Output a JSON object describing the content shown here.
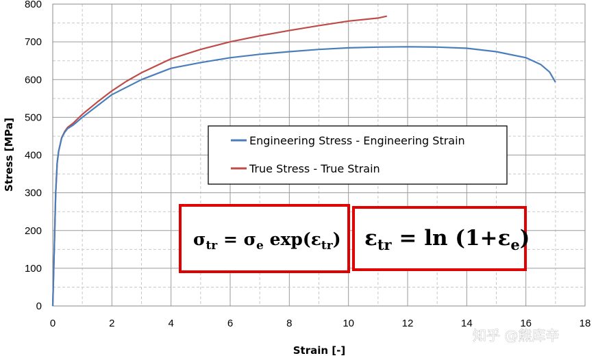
{
  "chart_data": {
    "type": "line",
    "xlabel": "Strain [-]",
    "ylabel": "Stress [MPa]",
    "xlim": [
      0,
      18
    ],
    "ylim": [
      0,
      800
    ],
    "xticks": [
      0,
      2,
      4,
      6,
      8,
      10,
      12,
      14,
      16,
      18
    ],
    "yticks": [
      0,
      100,
      200,
      300,
      400,
      500,
      600,
      700,
      800
    ],
    "grid": "major solid, minor dashed",
    "legend_position": "center-right",
    "series": [
      {
        "name": "Engineering Stress - Engineering Strain",
        "color": "#4a7ebb",
        "x": [
          0,
          0.05,
          0.1,
          0.15,
          0.2,
          0.3,
          0.4,
          0.5,
          0.7,
          1,
          1.5,
          2,
          2.5,
          3,
          4,
          5,
          6,
          7,
          8,
          9,
          10,
          11,
          12,
          13,
          14,
          15,
          16,
          16.5,
          16.8,
          17
        ],
        "y": [
          0,
          150,
          300,
          380,
          410,
          445,
          460,
          470,
          480,
          500,
          530,
          560,
          580,
          600,
          630,
          645,
          658,
          667,
          674,
          680,
          684,
          686,
          687,
          686,
          683,
          674,
          658,
          640,
          620,
          593
        ]
      },
      {
        "name": "True Stress - True Strain",
        "color": "#be4b48",
        "x": [
          0,
          0.05,
          0.1,
          0.15,
          0.2,
          0.3,
          0.4,
          0.5,
          0.7,
          1,
          1.5,
          2,
          2.5,
          3,
          4,
          5,
          6,
          7,
          8,
          9,
          10,
          11,
          11.3
        ],
        "y": [
          0,
          150,
          300,
          380,
          410,
          446,
          462,
          473,
          485,
          508,
          540,
          570,
          596,
          618,
          655,
          680,
          700,
          716,
          730,
          743,
          755,
          763,
          768
        ]
      }
    ],
    "annotations": {
      "formula_1": {
        "sigma": "σ",
        "tr": "tr",
        "eq": " = ",
        "e": "e",
        "exp": " exp(",
        "eps": "ε",
        "close": ")"
      },
      "formula_2": {
        "eps": "ε",
        "tr": "tr",
        "eq": " = ",
        "ln": "ln",
        "open": " (1+",
        "e": "e",
        "close": ")"
      },
      "box_color": "#e00000"
    }
  },
  "watermark": "知乎 @熊库辛"
}
